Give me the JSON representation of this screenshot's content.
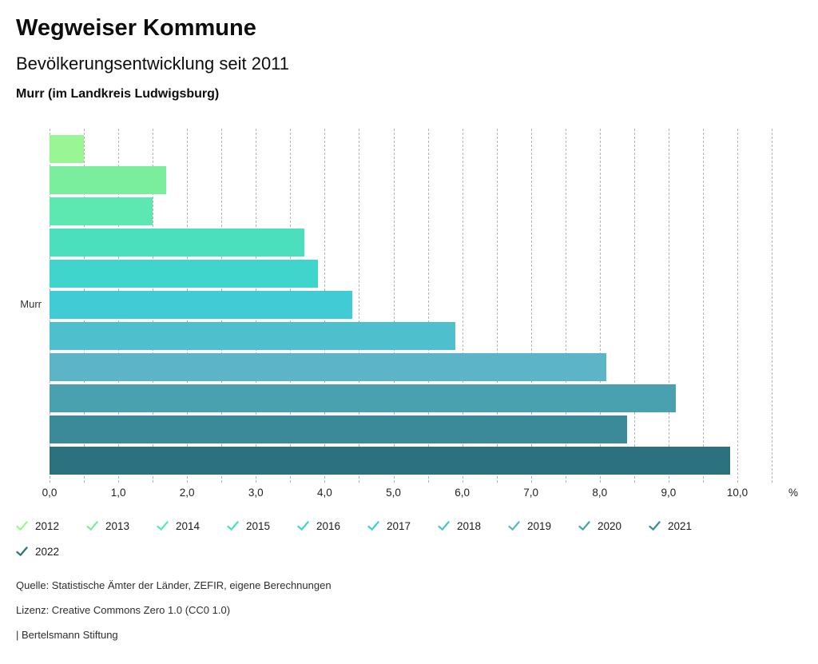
{
  "header": {
    "title": "Wegweiser Kommune",
    "subtitle": "Bevölkerungsentwicklung seit 2011",
    "region": "Murr (im Landkreis Ludwigsburg)"
  },
  "chart_data": {
    "type": "bar",
    "orientation": "horizontal",
    "title": "Bevölkerungsentwicklung seit 2011",
    "group_label": "Murr",
    "categories": [
      "2012",
      "2013",
      "2014",
      "2015",
      "2016",
      "2017",
      "2018",
      "2019",
      "2020",
      "2021",
      "2022"
    ],
    "values": [
      0.5,
      1.7,
      1.5,
      3.7,
      3.9,
      4.4,
      5.9,
      8.1,
      9.1,
      8.4,
      9.9
    ],
    "colors": [
      "#9af595",
      "#7bee9e",
      "#5de7b1",
      "#4bdfbe",
      "#40d5cc",
      "#41cbd4",
      "#4dbfcd",
      "#5cb4c7",
      "#49a0ae",
      "#3a8a99",
      "#2b717f"
    ],
    "unit": "%",
    "xlim": [
      0,
      10.5
    ],
    "grid_step": 0.5,
    "grid": true,
    "x_ticks": [
      "0,0",
      "1,0",
      "2,0",
      "3,0",
      "4,0",
      "5,0",
      "6,0",
      "7,0",
      "8,0",
      "9,0",
      "10,0"
    ],
    "legend_position": "bottom"
  },
  "footer": {
    "source": "Quelle: Statistische Ämter der Länder, ZEFIR, eigene Berechnungen",
    "license": "Lizenz: Creative Commons Zero 1.0 (CC0 1.0)",
    "brand": "| Bertelsmann Stiftung"
  }
}
